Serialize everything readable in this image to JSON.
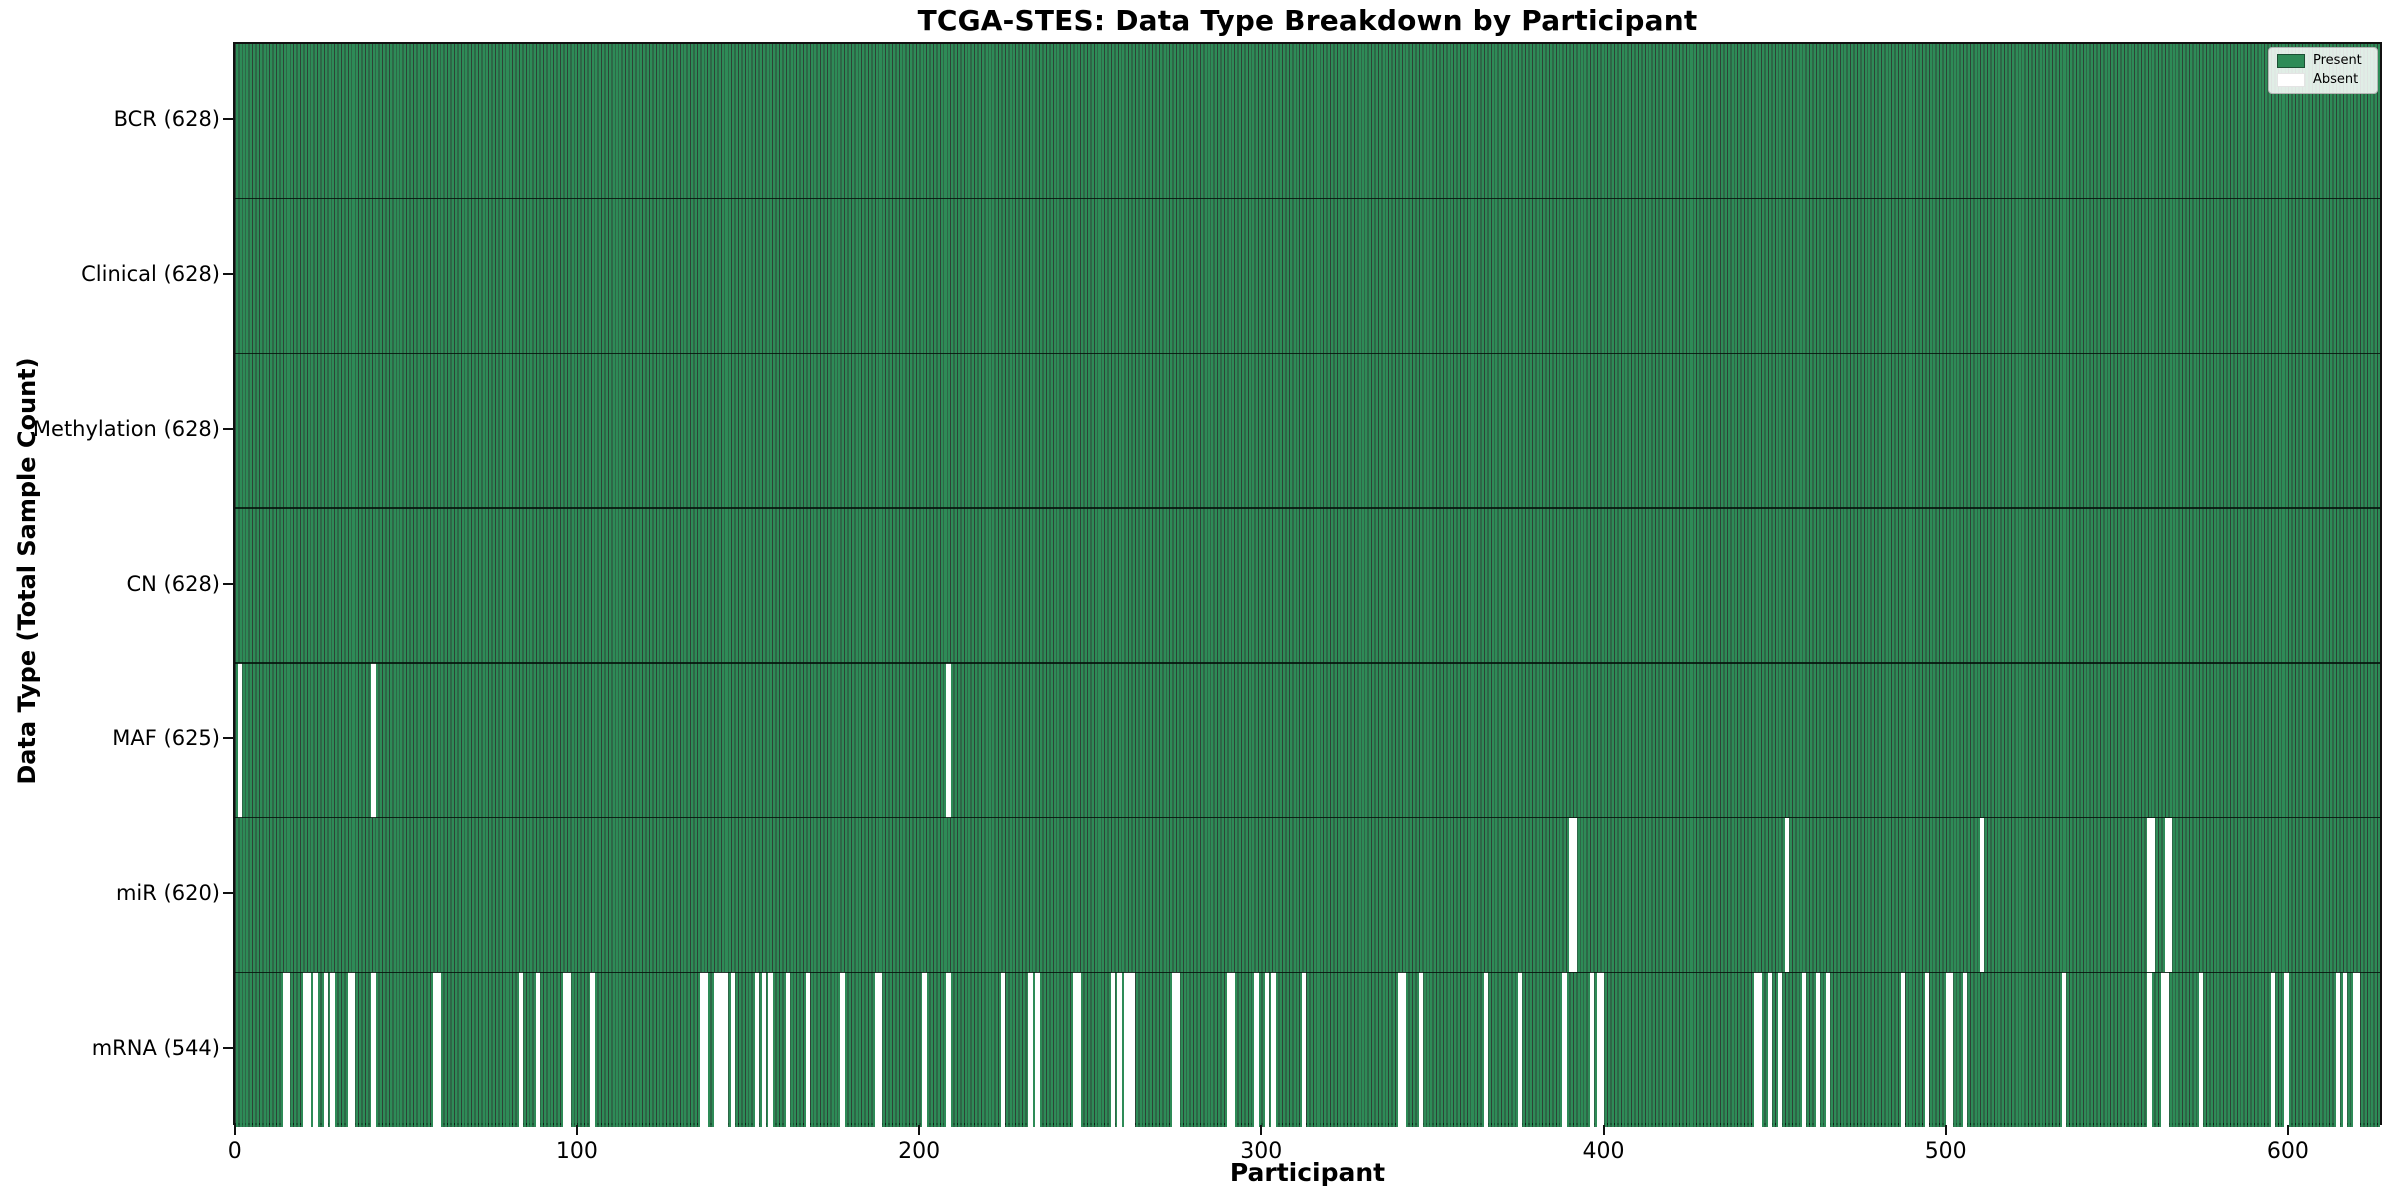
{
  "chart_data": {
    "type": "heatmap",
    "title": "TCGA-STES: Data Type Breakdown by Participant",
    "xlabel": "Participant",
    "ylabel": "Data Type (Total Sample Count)",
    "n_participants": 628,
    "xlim": [
      -0.5,
      627.5
    ],
    "x_ticks": [
      0,
      100,
      200,
      300,
      400,
      500,
      600
    ],
    "grid": false,
    "legend_position": "upper right",
    "legend": [
      {
        "label": "Present",
        "color": "#2e8b57"
      },
      {
        "label": "Absent",
        "color": "#ffffff"
      }
    ],
    "colors": {
      "present": "#2e8b57",
      "absent": "#ffffff",
      "bar_edge": "rgba(8,34,20,0.85)"
    },
    "rows": [
      {
        "name": "BCR",
        "label": "BCR (628)",
        "present_count": 628,
        "absent_participants": []
      },
      {
        "name": "Clinical",
        "label": "Clinical (628)",
        "present_count": 628,
        "absent_participants": []
      },
      {
        "name": "Methylation",
        "label": "Methylation (628)",
        "present_count": 628,
        "absent_participants": []
      },
      {
        "name": "CN",
        "label": "CN (628)",
        "present_count": 628,
        "absent_participants": []
      },
      {
        "name": "MAF",
        "label": "MAF (625)",
        "present_count": 625,
        "absent_participants": [
          1,
          40,
          208
        ]
      },
      {
        "name": "miR",
        "label": "miR (620)",
        "present_count": 620,
        "absent_participants": [
          390,
          391,
          453,
          510,
          559,
          560,
          564,
          565
        ]
      },
      {
        "name": "mRNA",
        "label": "mRNA (544)",
        "present_count": 544,
        "absent_participants": [
          14,
          15,
          20,
          21,
          23,
          26,
          28,
          33,
          34,
          40,
          58,
          59,
          83,
          88,
          96,
          97,
          104,
          136,
          137,
          140,
          141,
          142,
          143,
          145,
          152,
          154,
          156,
          161,
          167,
          177,
          187,
          188,
          201,
          208,
          224,
          232,
          234,
          245,
          246,
          256,
          258,
          260,
          261,
          262,
          274,
          275,
          290,
          291,
          298,
          301,
          303,
          312,
          340,
          341,
          346,
          365,
          375,
          388,
          396,
          398,
          399,
          444,
          445,
          448,
          451,
          458,
          462,
          465,
          487,
          494,
          500,
          501,
          505,
          534,
          559,
          563,
          564,
          574,
          595,
          599,
          614,
          616,
          619,
          620
        ]
      }
    ]
  }
}
